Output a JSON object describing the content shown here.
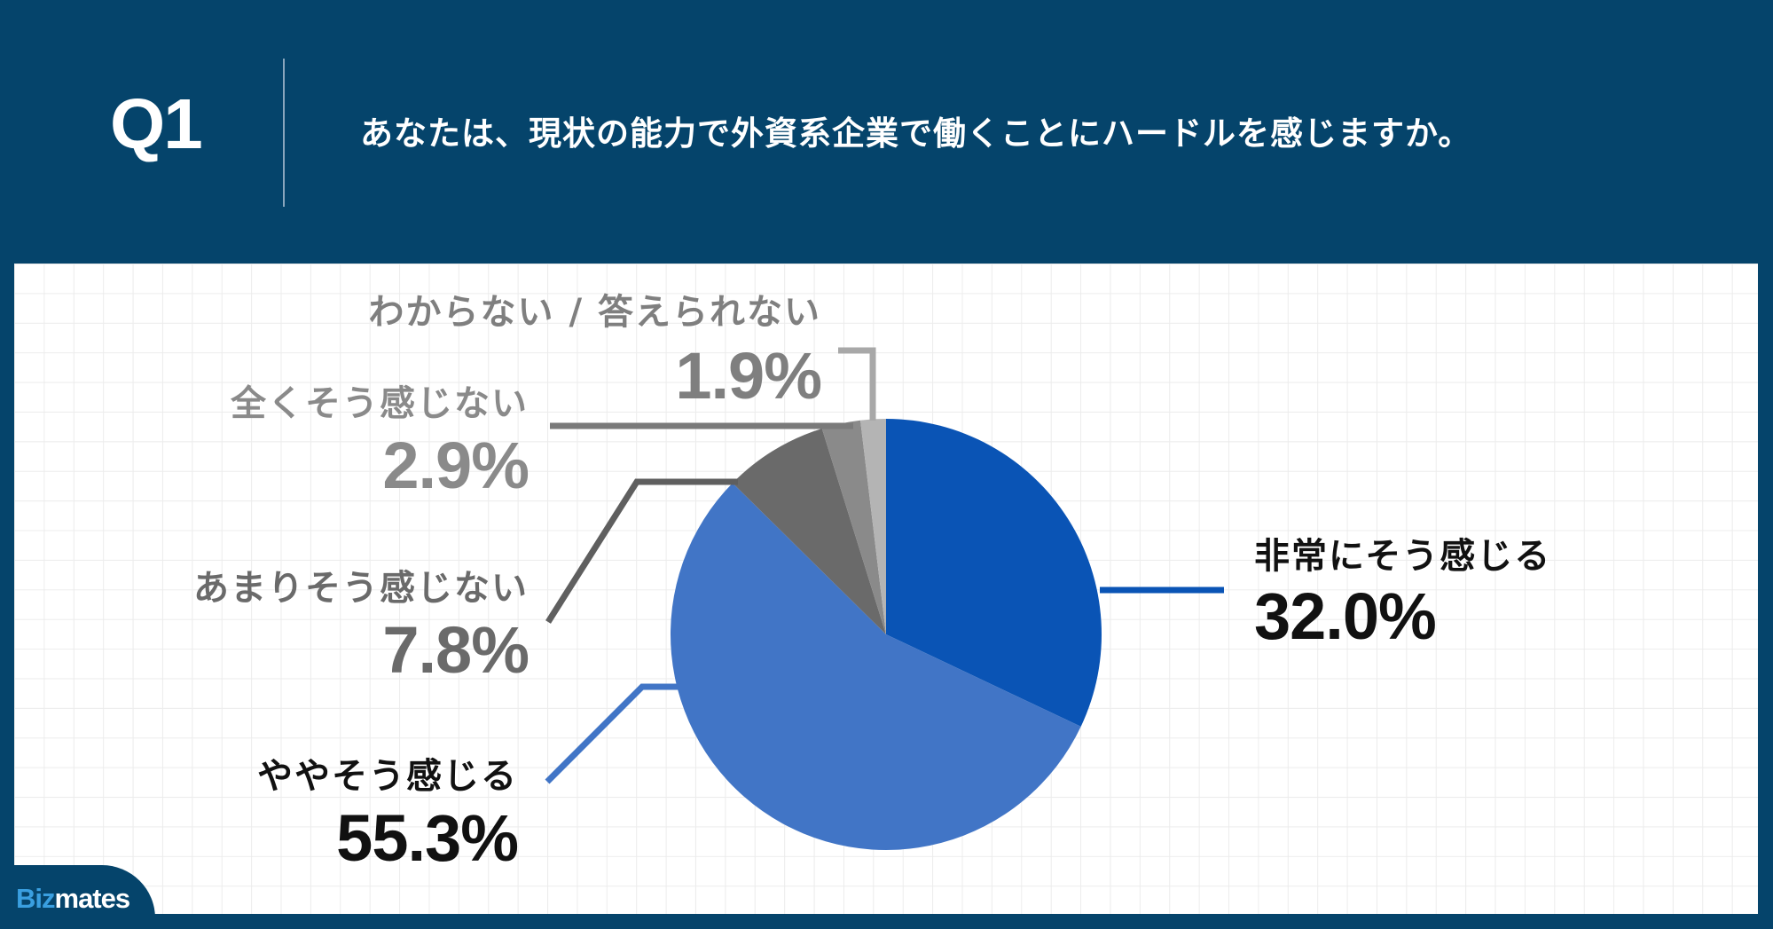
{
  "header": {
    "question_number": "Q1",
    "question_text": "あなたは、現状の能力で外資系企業で働くことにハードルを感じますか。"
  },
  "logo": {
    "part1": "Biz",
    "part2": "mates"
  },
  "colors": {
    "background": "#05446b",
    "very_much": "#0a54b5",
    "somewhat": "#4175c6",
    "not_much": "#6a6a6a",
    "not_at_all": "#8a8a8a",
    "dont_know": "#b4b4b4"
  },
  "labels": {
    "very_much": {
      "name": "非常にそう感じる",
      "pct": "32.0%"
    },
    "somewhat": {
      "name": "ややそう感じる",
      "pct": "55.3%"
    },
    "not_much": {
      "name": "あまりそう感じない",
      "pct": "7.8%"
    },
    "not_at_all": {
      "name": "全くそう感じない",
      "pct": "2.9%"
    },
    "dont_know": {
      "name": "わからない / 答えられない",
      "pct": "1.9%"
    }
  },
  "chart_data": {
    "type": "pie",
    "title": "あなたは、現状の能力で外資系企業で働くことにハードルを感じますか。",
    "categories": [
      "非常にそう感じる",
      "ややそう感じる",
      "あまりそう感じない",
      "全くそう感じない",
      "わからない / 答えられない"
    ],
    "values": [
      32.0,
      55.3,
      7.8,
      2.9,
      1.9
    ],
    "unit": "%",
    "start_angle": "12 o'clock, clockwise",
    "colors": [
      "#0a54b5",
      "#4175c6",
      "#6a6a6a",
      "#8a8a8a",
      "#b4b4b4"
    ],
    "legend": "callout labels with leader lines"
  }
}
